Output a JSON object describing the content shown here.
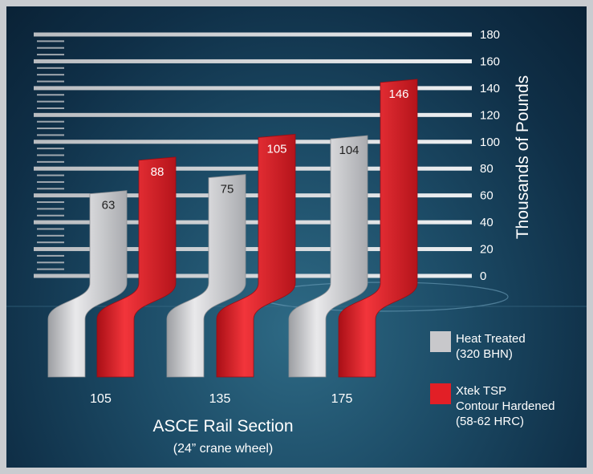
{
  "chart_data": {
    "type": "bar",
    "categories": [
      "105",
      "135",
      "175"
    ],
    "series": [
      {
        "name": "Heat Treated (320 BHN)",
        "legend_lines": [
          "Heat Treated",
          "(320 BHN)"
        ],
        "color": "#c8c8cb",
        "label_color": "#222222",
        "values": [
          63,
          75,
          104
        ]
      },
      {
        "name": "Xtek TSP Contour Hardened (58-62 HRC)",
        "legend_lines": [
          "Xtek TSP",
          "Contour Hardened",
          "(58-62 HRC)"
        ],
        "color": "#e21f26",
        "label_color": "#ffffff",
        "values": [
          88,
          105,
          146
        ]
      }
    ],
    "yticks": [
      "180",
      "160",
      "140",
      "120",
      "100",
      "80",
      "60",
      "40",
      "20",
      "0"
    ],
    "ylim": [
      0,
      180
    ],
    "ylabel": "Thousands of Pounds",
    "xlabel": "ASCE Rail Section",
    "xlabel_sub": "(24” crane wheel)",
    "grid": true,
    "legend_position": "bottom-right"
  }
}
